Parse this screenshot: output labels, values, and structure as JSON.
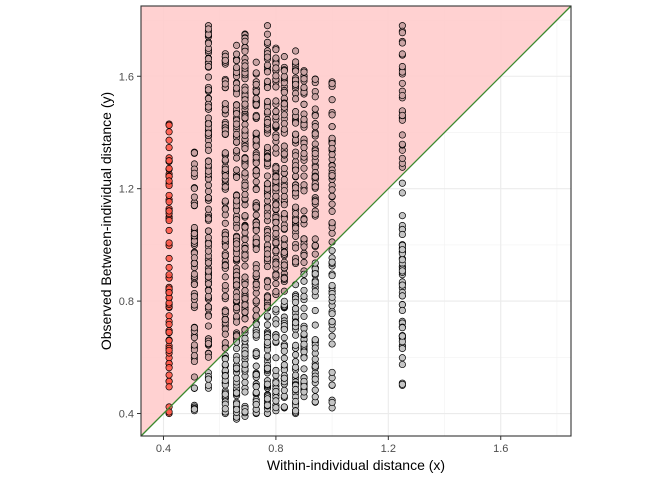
{
  "chart_data": {
    "type": "scatter",
    "title": "",
    "xlabel": "Within-individual distance (x)",
    "ylabel": "Observed Between-individual distance (y)",
    "xlim": [
      0.32,
      1.85
    ],
    "ylim": [
      0.32,
      1.85
    ],
    "x_ticks": [
      0.4,
      0.8,
      1.2,
      1.6
    ],
    "y_ticks": [
      0.4,
      0.8,
      1.2,
      1.6
    ],
    "x_tick_labels": [
      "0.4",
      "0.8",
      "1.2",
      "1.6"
    ],
    "y_tick_labels": [
      "0.4",
      "0.8",
      "1.2",
      "1.6"
    ],
    "grid": true,
    "reference_line": {
      "type": "identity",
      "slope": 1,
      "intercept": 0,
      "color": "#3a8a2e"
    },
    "region_above_line": {
      "fill": "#ffcccc",
      "meaning": "y > x"
    },
    "colors": {
      "above_line_point": "#c9a3a3",
      "below_line_point": "#c4c4c4",
      "highlight_point": "#ff5a4a",
      "point_outline": "#000000"
    },
    "columns": [
      {
        "x": 0.42,
        "y_min": 0.4,
        "y_max": 1.43,
        "highlight": true,
        "n": 70
      },
      {
        "x": 0.51,
        "y_min": 0.41,
        "y_max": 1.33,
        "n": 70
      },
      {
        "x": 0.56,
        "y_min": 0.49,
        "y_max": 1.78,
        "n": 120
      },
      {
        "x": 0.62,
        "y_min": 0.4,
        "y_max": 1.68,
        "n": 120
      },
      {
        "x": 0.66,
        "y_min": 0.38,
        "y_max": 1.71,
        "n": 130
      },
      {
        "x": 0.69,
        "y_min": 0.39,
        "y_max": 1.75,
        "n": 130
      },
      {
        "x": 0.73,
        "y_min": 0.4,
        "y_max": 1.65,
        "n": 120
      },
      {
        "x": 0.77,
        "y_min": 0.4,
        "y_max": 1.78,
        "n": 130
      },
      {
        "x": 0.8,
        "y_min": 0.41,
        "y_max": 1.7,
        "n": 120
      },
      {
        "x": 0.83,
        "y_min": 0.42,
        "y_max": 1.67,
        "n": 110
      },
      {
        "x": 0.87,
        "y_min": 0.4,
        "y_max": 1.69,
        "n": 110
      },
      {
        "x": 0.9,
        "y_min": 0.46,
        "y_max": 1.62,
        "n": 90
      },
      {
        "x": 0.94,
        "y_min": 0.44,
        "y_max": 1.59,
        "n": 80
      },
      {
        "x": 1.0,
        "y_min": 0.42,
        "y_max": 1.58,
        "n": 70
      },
      {
        "x": 1.25,
        "y_min": 0.5,
        "y_max": 1.78,
        "n": 80
      }
    ]
  }
}
